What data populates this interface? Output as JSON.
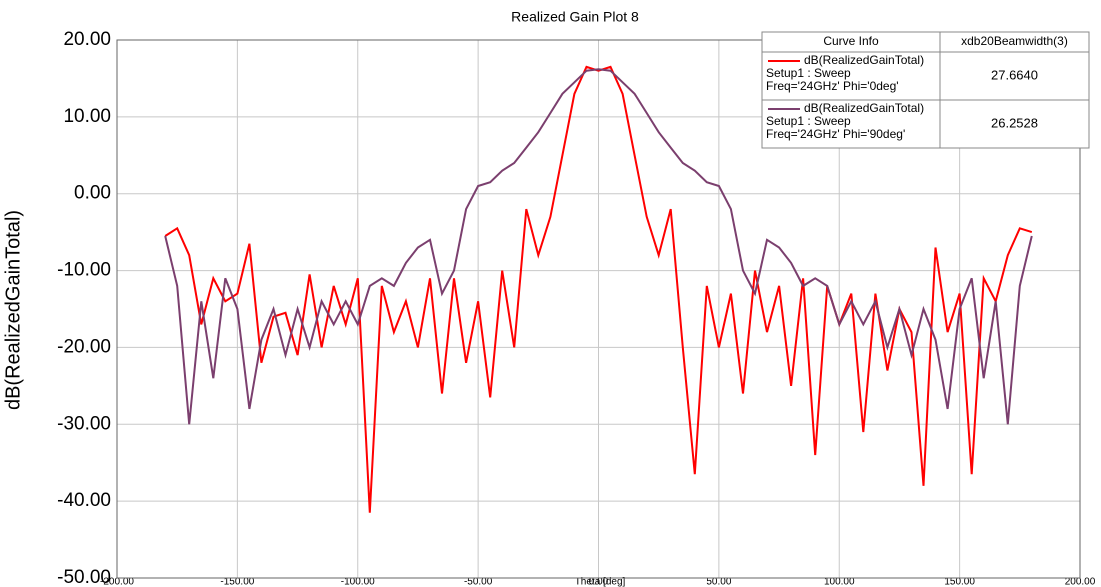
{
  "chart_data": {
    "type": "line",
    "title": "Realized Gain Plot 8",
    "x_label": "Theta [deg]",
    "y_label": "dB(RealizedGainTotal)",
    "x": [
      -180,
      -175,
      -170,
      -165,
      -160,
      -155,
      -150,
      -145,
      -140,
      -135,
      -130,
      -125,
      -120,
      -115,
      -110,
      -105,
      -100,
      -95,
      -90,
      -85,
      -80,
      -75,
      -70,
      -65,
      -60,
      -55,
      -50,
      -45,
      -40,
      -35,
      -30,
      -25,
      -20,
      -15,
      -10,
      -5,
      0,
      5,
      10,
      15,
      20,
      25,
      30,
      35,
      40,
      45,
      50,
      55,
      60,
      65,
      70,
      75,
      80,
      85,
      90,
      95,
      100,
      105,
      110,
      115,
      120,
      125,
      130,
      135,
      140,
      145,
      150,
      155,
      160,
      165,
      170,
      175,
      180
    ],
    "series": [
      {
        "name": "dB(RealizedGainTotal)",
        "setup": "Setup1 : Sweep",
        "freq": "Freq='24GHz' Phi='0deg'",
        "beamwidth": "27.6640",
        "color": "#ff0000",
        "values": [
          -5.5,
          -4.5,
          -8,
          -17,
          -11,
          -14,
          -13,
          -6.5,
          -22,
          -16,
          -15.5,
          -21,
          -10.5,
          -20,
          -12,
          -17,
          -11,
          -41.5,
          -12,
          -18,
          -14,
          -20,
          -11,
          -26,
          -11,
          -22,
          -14,
          -26.5,
          -10,
          -20,
          -2,
          -8,
          -3,
          5,
          13,
          16.5,
          16,
          16.5,
          13,
          5,
          -3,
          -8,
          -2,
          -20,
          -36.5,
          -12,
          -20,
          -13,
          -26,
          -10,
          -18,
          -12,
          -25,
          -11,
          -34,
          -12,
          -17,
          -13,
          -31,
          -13,
          -23,
          -15,
          -18,
          -38,
          -7,
          -18,
          -13,
          -36.5,
          -11,
          -14,
          -8,
          -4.5,
          -5
        ]
      },
      {
        "name": "dB(RealizedGainTotal)",
        "setup": "Setup1 : Sweep",
        "freq": "Freq='24GHz' Phi='90deg'",
        "beamwidth": "26.2528",
        "color": "#7b3f6e",
        "values": [
          -5.5,
          -12,
          -30,
          -14,
          -24,
          -11,
          -15,
          -28,
          -19,
          -15,
          -21,
          -15,
          -20,
          -14,
          -17,
          -14,
          -17,
          -12,
          -11,
          -12,
          -9,
          -7,
          -6,
          -13,
          -10,
          -2,
          1,
          1.5,
          3,
          4,
          6,
          8,
          10.5,
          13,
          14.5,
          16,
          16.2,
          16,
          14.5,
          13,
          10.5,
          8,
          6,
          4,
          3,
          1.5,
          1,
          -2,
          -10,
          -13,
          -6,
          -7,
          -9,
          -12,
          -11,
          -12,
          -17,
          -14,
          -17,
          -14,
          -20,
          -15,
          -21,
          -15,
          -19,
          -28,
          -15,
          -11,
          -24,
          -14,
          -30,
          -12,
          -5.5
        ]
      }
    ],
    "legend_headers": [
      "Curve Info",
      "xdb20Beamwidth(3)"
    ],
    "xlim": [
      -200,
      200
    ],
    "xticks": [
      {
        "value": -200,
        "label": "-200.00"
      },
      {
        "value": -150,
        "label": "-150.00"
      },
      {
        "value": -100,
        "label": "-100.00"
      },
      {
        "value": -50,
        "label": "-50.00"
      },
      {
        "value": 0,
        "label": "0.00"
      },
      {
        "value": 50,
        "label": "50.00"
      },
      {
        "value": 100,
        "label": "100.00"
      },
      {
        "value": 150,
        "label": "150.00"
      },
      {
        "value": 200,
        "label": "200.00"
      }
    ],
    "ylim": [
      -50,
      20
    ],
    "yticks": [
      {
        "value": -50,
        "label": "-50.00"
      },
      {
        "value": -40,
        "label": "-40.00"
      },
      {
        "value": -30,
        "label": "-30.00"
      },
      {
        "value": -20,
        "label": "-20.00"
      },
      {
        "value": -10,
        "label": "-10.00"
      },
      {
        "value": 0,
        "label": "0.00"
      },
      {
        "value": 10,
        "label": "10.00"
      },
      {
        "value": 20,
        "label": "20.00"
      }
    ],
    "grid": true
  }
}
